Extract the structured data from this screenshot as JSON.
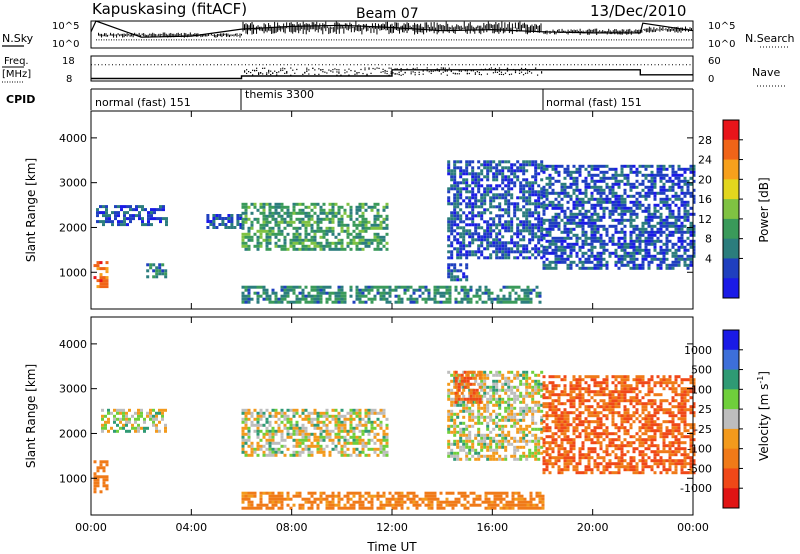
{
  "header": {
    "station": "Kapuskasing (fitACF)",
    "beam": "Beam 07",
    "date": "13/Dec/2010"
  },
  "summary_panel": {
    "left_label": "N.Sky",
    "right_label": "N.Search",
    "left_ticks": [
      "10^5",
      "10^0"
    ],
    "right_ticks": [
      "10^5",
      "10^0"
    ]
  },
  "freq_panel": {
    "left_label_1": "Freq.",
    "left_label_2": "[MHz]",
    "right_label": "Nave",
    "left_ticks": [
      "18",
      "8"
    ],
    "right_ticks": [
      "60",
      "0"
    ]
  },
  "cpid": {
    "label": "CPID",
    "segments": [
      {
        "name": "normal (fast) 151",
        "start_h": 0,
        "end_h": 6
      },
      {
        "name": "themis 3300",
        "start_h": 6,
        "end_h": 18
      },
      {
        "name": "normal (fast) 151",
        "start_h": 18,
        "end_h": 24
      }
    ]
  },
  "colorbars": {
    "power": {
      "label": "Power [dB]",
      "ticks": [
        "28",
        "24",
        "20",
        "16",
        "12",
        "8",
        "4"
      ],
      "colors": [
        "#e8141a",
        "#f06418",
        "#f7a01c",
        "#e2d61e",
        "#7fc242",
        "#3a9a5a",
        "#2b7d7d",
        "#1f3fbf",
        "#1a1ae6"
      ]
    },
    "velocity": {
      "label_main": "Velocity [m s",
      "label_sup": "-1",
      "label_end": "]",
      "ticks": [
        "1000",
        "500",
        "100",
        "25",
        "-25",
        "-100",
        "-500",
        "-1000"
      ],
      "colors": [
        "#1a1ae6",
        "#3d6fd9",
        "#2f9a74",
        "#6fcf3b",
        "#bdbdbd",
        "#f39a1c",
        "#f07a18",
        "#f04818",
        "#e01414"
      ]
    }
  },
  "axes": {
    "ylabel": "Slant Range [km]",
    "xlabel": "Time UT",
    "yticks": [
      "4000",
      "3000",
      "2000",
      "1000"
    ],
    "xticks": [
      "00:00",
      "04:00",
      "08:00",
      "12:00",
      "16:00",
      "20:00",
      "00:00"
    ]
  },
  "chart_data": [
    {
      "type": "heatmap",
      "name": "power",
      "x_range_h": [
        0,
        24
      ],
      "y_range_km": [
        180,
        4600
      ],
      "yticks_km": [
        1000,
        2000,
        3000,
        4000
      ],
      "xticks_h": [
        0,
        4,
        8,
        12,
        16,
        20,
        24
      ],
      "regions": [
        {
          "t0": 0.1,
          "t1": 0.6,
          "r0": 700,
          "r1": 1250,
          "level": 26
        },
        {
          "t0": 0.2,
          "t1": 3.0,
          "r0": 2050,
          "r1": 2500,
          "level": 6
        },
        {
          "t0": 2.2,
          "t1": 3.0,
          "r0": 900,
          "r1": 1200,
          "level": 10
        },
        {
          "t0": 4.6,
          "t1": 6.0,
          "r0": 2000,
          "r1": 2300,
          "level": 6
        },
        {
          "t0": 6.0,
          "t1": 11.8,
          "r0": 1500,
          "r1": 2550,
          "level": 12
        },
        {
          "t0": 6.0,
          "t1": 18.0,
          "r0": 300,
          "r1": 700,
          "level": 10
        },
        {
          "t0": 14.2,
          "t1": 18.0,
          "r0": 1300,
          "r1": 3500,
          "level": 6
        },
        {
          "t0": 14.2,
          "t1": 15.0,
          "r0": 800,
          "r1": 1200,
          "level": 6
        },
        {
          "t0": 18.0,
          "t1": 24.0,
          "r0": 1100,
          "r1": 3400,
          "level": 6
        }
      ]
    },
    {
      "type": "heatmap",
      "name": "velocity",
      "x_range_h": [
        0,
        24
      ],
      "y_range_km": [
        180,
        4600
      ],
      "yticks_km": [
        1000,
        2000,
        3000,
        4000
      ],
      "xticks_h": [
        0,
        4,
        8,
        12,
        16,
        20,
        24
      ],
      "regions": [
        {
          "t0": 0.1,
          "t1": 0.6,
          "r0": 700,
          "r1": 1400,
          "level": -200
        },
        {
          "t0": 0.4,
          "t1": 3.0,
          "r0": 2050,
          "r1": 2550,
          "level": 0
        },
        {
          "t0": 6.0,
          "t1": 11.8,
          "r0": 1500,
          "r1": 2550,
          "level": 0
        },
        {
          "t0": 6.0,
          "t1": 18.0,
          "r0": 300,
          "r1": 700,
          "level": -150
        },
        {
          "t0": 14.2,
          "t1": 18.0,
          "r0": 1400,
          "r1": 3400,
          "level": 0
        },
        {
          "t0": 14.5,
          "t1": 15.5,
          "r0": 2700,
          "r1": 3400,
          "level": -300
        },
        {
          "t0": 18.0,
          "t1": 24.0,
          "r0": 1100,
          "r1": 3300,
          "level": -300
        }
      ]
    },
    {
      "type": "line",
      "name": "n-sky-n-search",
      "x_range_h": [
        0,
        24
      ],
      "series": [
        {
          "x": [
            0,
            0.2,
            2,
            4,
            6,
            8,
            10,
            12,
            14,
            16,
            18,
            20,
            21.9,
            22,
            24
          ],
          "y": [
            3,
            5,
            2.0,
            2.2,
            3.5,
            4.0,
            4.2,
            3.8,
            3.2,
            3.4,
            3.0,
            2.8,
            2.8,
            4.6,
            3.2
          ]
        }
      ]
    },
    {
      "type": "line",
      "name": "freq-nave",
      "x_range_h": [
        0,
        24
      ],
      "series": [
        {
          "x": [
            0,
            6,
            6,
            12,
            12,
            21.9,
            21.9,
            24
          ],
          "y": [
            9,
            9,
            10,
            10,
            12.5,
            12.5,
            10.5,
            10.5
          ]
        }
      ]
    }
  ]
}
